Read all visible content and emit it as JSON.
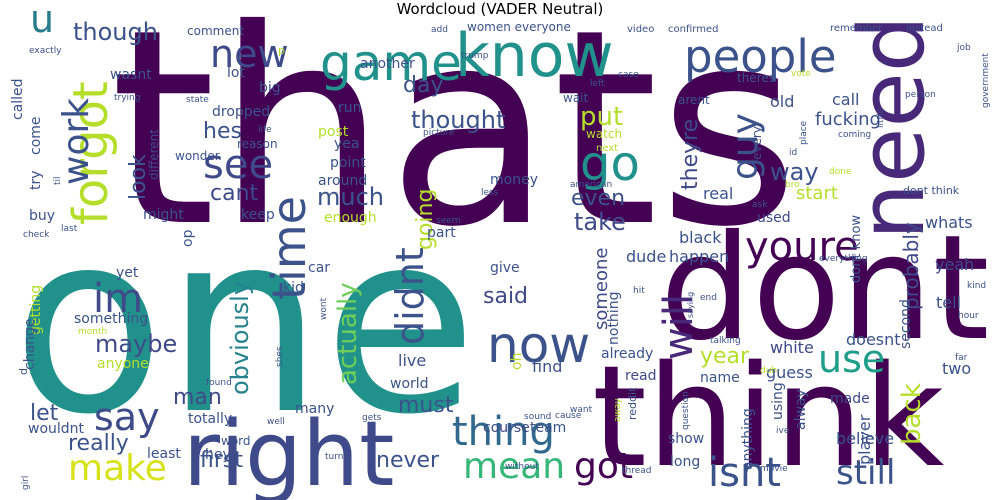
{
  "chart_data": {
    "type": "wordcloud",
    "title": "Wordcloud (VADER Neutral)",
    "colormap": "viridis",
    "words": [
      {
        "text": "thats",
        "rank": 1
      },
      {
        "text": "one",
        "rank": 2
      },
      {
        "text": "dont",
        "rank": 3
      },
      {
        "text": "think",
        "rank": 4
      },
      {
        "text": "know",
        "rank": 5
      },
      {
        "text": "need",
        "rank": 6
      },
      {
        "text": "right",
        "rank": 7
      },
      {
        "text": "people",
        "rank": 8
      },
      {
        "text": "game",
        "rank": 9
      },
      {
        "text": "youre",
        "rank": 10
      },
      {
        "text": "now",
        "rank": 11
      },
      {
        "text": "new",
        "rank": 12
      },
      {
        "text": "forgot",
        "rank": 13
      },
      {
        "text": "time",
        "rank": 14
      },
      {
        "text": "go",
        "rank": 15
      },
      {
        "text": "see",
        "rank": 16
      },
      {
        "text": "use",
        "rank": 17
      },
      {
        "text": "make",
        "rank": 18
      },
      {
        "text": "im",
        "rank": 19
      },
      {
        "text": "say",
        "rank": 20
      },
      {
        "text": "will",
        "rank": 21
      },
      {
        "text": "didnt",
        "rank": 22
      },
      {
        "text": "thing",
        "rank": 23
      },
      {
        "text": "still",
        "rank": 24
      },
      {
        "text": "isnt",
        "rank": 25
      },
      {
        "text": "mean",
        "rank": 26
      },
      {
        "text": "got",
        "rank": 27
      },
      {
        "text": "guy",
        "rank": 28
      },
      {
        "text": "work",
        "rank": 29
      },
      {
        "text": "u",
        "rank": 30
      },
      {
        "text": "probably",
        "rank": 31
      },
      {
        "text": "actually",
        "rank": 32
      },
      {
        "text": "though",
        "rank": 33
      },
      {
        "text": "obviously",
        "rank": 34
      },
      {
        "text": "thought",
        "rank": 35
      },
      {
        "text": "put",
        "rank": 36
      },
      {
        "text": "back",
        "rank": 37
      },
      {
        "text": "much",
        "rank": 38
      },
      {
        "text": "maybe",
        "rank": 39
      },
      {
        "text": "way",
        "rank": 40
      },
      {
        "text": "theyre",
        "rank": 41
      },
      {
        "text": "going",
        "rank": 42
      },
      {
        "text": "hes",
        "rank": 43
      },
      {
        "text": "look",
        "rank": 44
      },
      {
        "text": "cant",
        "rank": 45
      },
      {
        "text": "day",
        "rank": 46
      },
      {
        "text": "even",
        "rank": 47
      },
      {
        "text": "take",
        "rank": 48
      },
      {
        "text": "said",
        "rank": 49
      },
      {
        "text": "someone",
        "rank": 50
      },
      {
        "text": "year",
        "rank": 51
      },
      {
        "text": "really",
        "rank": 52
      },
      {
        "text": "first",
        "rank": 53
      },
      {
        "text": "must",
        "rank": 54
      },
      {
        "text": "man",
        "rank": 55
      },
      {
        "text": "let",
        "rank": 56
      },
      {
        "text": "never",
        "rank": 57
      },
      {
        "text": "fucking",
        "rank": 58
      },
      {
        "text": "whats",
        "rank": 59
      },
      {
        "text": "start",
        "rank": 60
      },
      {
        "text": "dont know",
        "rank": 61
      },
      {
        "text": "call",
        "rank": 62
      },
      {
        "text": "old",
        "rank": 63
      },
      {
        "text": "second",
        "rank": 64
      },
      {
        "text": "tell",
        "rank": 65
      },
      {
        "text": "yeah",
        "rank": 66
      },
      {
        "text": "used",
        "rank": 67
      },
      {
        "text": "real",
        "rank": 68
      },
      {
        "text": "every",
        "rank": 69
      },
      {
        "text": "guess",
        "rank": 70
      },
      {
        "text": "two",
        "rank": 71
      },
      {
        "text": "doesnt",
        "rank": 72
      },
      {
        "text": "white",
        "rank": 73
      },
      {
        "text": "black",
        "rank": 74
      },
      {
        "text": "happen",
        "rank": 75
      },
      {
        "text": "dude",
        "rank": 76
      },
      {
        "text": "already",
        "rank": 77
      },
      {
        "text": "find",
        "rank": 78
      },
      {
        "text": "read",
        "rank": 79
      },
      {
        "text": "name",
        "rank": 80
      },
      {
        "text": "made",
        "rank": 81
      },
      {
        "text": "alway",
        "rank": 82
      },
      {
        "text": "player",
        "rank": 83
      },
      {
        "text": "believe",
        "rank": 84
      },
      {
        "text": "using",
        "rank": 85
      },
      {
        "text": "anything",
        "rank": 86
      },
      {
        "text": "show",
        "rank": 87
      },
      {
        "text": "long",
        "rank": 88
      },
      {
        "text": "course",
        "rank": 89
      },
      {
        "text": "team",
        "rank": 90
      },
      {
        "text": "world",
        "rank": 91
      },
      {
        "text": "live",
        "rank": 92
      },
      {
        "text": "wouldnt",
        "rank": 93
      },
      {
        "text": "totally",
        "rank": 94
      },
      {
        "text": "hey",
        "rank": 95
      },
      {
        "text": "least",
        "rank": 96
      },
      {
        "text": "word",
        "rank": 97
      },
      {
        "text": "many",
        "rank": 98
      },
      {
        "text": "anyone",
        "rank": 99
      },
      {
        "text": "something",
        "rank": 100
      },
      {
        "text": "getting",
        "rank": 101
      },
      {
        "text": "change",
        "rank": 102
      },
      {
        "text": "yet",
        "rank": 103
      },
      {
        "text": "kid",
        "rank": 104
      },
      {
        "text": "car",
        "rank": 105
      },
      {
        "text": "give",
        "rank": 106
      },
      {
        "text": "nothing",
        "rank": 107
      },
      {
        "text": "oh",
        "rank": 108
      },
      {
        "text": "part",
        "rank": 109
      },
      {
        "text": "enough",
        "rank": 110
      },
      {
        "text": "around",
        "rank": 111
      },
      {
        "text": "point",
        "rank": 112
      },
      {
        "text": "yea",
        "rank": 113
      },
      {
        "text": "post",
        "rank": 114
      },
      {
        "text": "run",
        "rank": 115
      },
      {
        "text": "another",
        "rank": 116
      },
      {
        "text": "money",
        "rank": 117
      },
      {
        "text": "keep",
        "rank": 118
      },
      {
        "text": "might",
        "rank": 119
      },
      {
        "text": "buy",
        "rank": 120
      },
      {
        "text": "op",
        "rank": 121
      },
      {
        "text": "try",
        "rank": 122
      },
      {
        "text": "come",
        "rank": 123
      },
      {
        "text": "called",
        "rank": 124
      },
      {
        "text": "wasnt",
        "rank": 125
      },
      {
        "text": "lot",
        "rank": 126
      },
      {
        "text": "big",
        "rank": 127
      },
      {
        "text": "dropped",
        "rank": 128
      },
      {
        "text": "reason",
        "rank": 129
      },
      {
        "text": "different",
        "rank": 130
      },
      {
        "text": "wonder",
        "rank": 131
      },
      {
        "text": "comment",
        "rank": 132
      },
      {
        "text": "women everyone",
        "rank": 133
      },
      {
        "text": "video",
        "rank": 134
      },
      {
        "text": "confirmed",
        "rank": 135
      },
      {
        "text": "remember",
        "rank": 136
      },
      {
        "text": "instead",
        "rank": 137
      },
      {
        "text": "wait",
        "rank": 138
      },
      {
        "text": "theres",
        "rank": 139
      },
      {
        "text": "arent",
        "rank": 140
      },
      {
        "text": "watch",
        "rank": 141
      },
      {
        "text": "next",
        "rank": 142
      },
      {
        "text": "dont think",
        "rank": 143
      },
      {
        "text": "done",
        "rank": 144
      },
      {
        "text": "government",
        "rank": 145
      },
      {
        "text": "job",
        "rank": 146
      },
      {
        "text": "person",
        "rank": 147
      },
      {
        "text": "vote",
        "rank": 148
      },
      {
        "text": "coming",
        "rank": 149
      },
      {
        "text": "little",
        "rank": 150
      },
      {
        "text": "place",
        "rank": 151
      },
      {
        "text": "id",
        "rank": 152
      },
      {
        "text": "bro",
        "rank": 153
      },
      {
        "text": "ask",
        "rank": 154
      },
      {
        "text": "american",
        "rank": 155
      },
      {
        "text": "less",
        "rank": 156
      },
      {
        "text": "seem",
        "rank": 157
      },
      {
        "text": "picture",
        "rank": 158
      },
      {
        "text": "life",
        "rank": 159
      },
      {
        "text": "state",
        "rank": 160
      },
      {
        "text": "trying",
        "rank": 161
      },
      {
        "text": "exactly",
        "rank": 162
      },
      {
        "text": "add",
        "rank": 163
      },
      {
        "text": "trump",
        "rank": 164
      },
      {
        "text": "case",
        "rank": 165
      },
      {
        "text": "left",
        "rank": 166
      },
      {
        "text": "hit",
        "rank": 167
      },
      {
        "text": "end",
        "rank": 168
      },
      {
        "text": "saying",
        "rank": 169
      },
      {
        "text": "hour",
        "rank": 170
      },
      {
        "text": "kind",
        "rank": 171
      },
      {
        "text": "far",
        "rank": 172
      },
      {
        "text": "everything",
        "rank": 173
      },
      {
        "text": "talking",
        "rank": 174
      },
      {
        "text": "duh",
        "rank": 175
      },
      {
        "text": "question",
        "rank": 176
      },
      {
        "text": "want",
        "rank": 177
      },
      {
        "text": "away",
        "rank": 178
      },
      {
        "text": "cause",
        "rank": 179
      },
      {
        "text": "sound",
        "rank": 180
      },
      {
        "text": "movie",
        "rank": 181
      },
      {
        "text": "thread",
        "rank": 182
      },
      {
        "text": "turn",
        "rank": 183
      },
      {
        "text": "without",
        "rank": 184
      },
      {
        "text": "gets",
        "rank": 185
      },
      {
        "text": "found",
        "rank": 186
      },
      {
        "text": "shes",
        "rank": 187
      },
      {
        "text": "well",
        "rank": 188
      },
      {
        "text": "wont",
        "rank": 189
      },
      {
        "text": "month",
        "rank": 190
      },
      {
        "text": "last",
        "rank": 191
      },
      {
        "text": "check",
        "rank": 192
      },
      {
        "text": "girl",
        "rank": 193
      },
      {
        "text": "ive",
        "rank": 194
      },
      {
        "text": "reddit",
        "rank": 195
      },
      {
        "text": "til",
        "rank": 196
      },
      {
        "text": "p",
        "rank": 197
      },
      {
        "text": "d",
        "rank": 198
      }
    ]
  }
}
